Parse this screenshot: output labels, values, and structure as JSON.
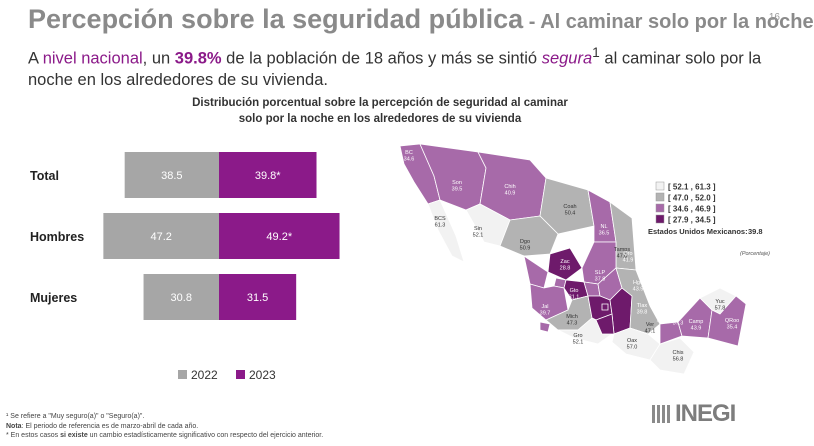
{
  "header": {
    "title_main": "Percepción sobre la seguridad pública",
    "title_sub": " - Al caminar solo por la noche",
    "page_number": "16"
  },
  "lead": {
    "p1": "A ",
    "p2": "nivel nacional",
    "p3": ", un ",
    "p4": "39.8%",
    "p5": " de la población de 18 años y más se sintió ",
    "p6": "segura",
    "p6sup": "1",
    "p7": " al caminar solo por la noche en los alrededores de su vivienda."
  },
  "chart_data": [
    {
      "type": "bar",
      "orientation": "horizontal-diverging",
      "title": "Distribución porcentual sobre la percepción de seguridad al caminar solo por la noche en los alrededores de su vivienda",
      "categories": [
        "Total",
        "Hombres",
        "Mujeres"
      ],
      "series": [
        {
          "name": "2022",
          "color": "#a6a6a6",
          "values": [
            38.5,
            47.2,
            30.8
          ],
          "labels": [
            "38.5",
            "47.2",
            "30.8"
          ]
        },
        {
          "name": "2023",
          "color": "#8b1a89",
          "values": [
            39.8,
            49.2,
            31.5
          ],
          "labels": [
            "39.8*",
            "49.2*",
            "31.5"
          ]
        }
      ],
      "xlabel": "",
      "ylabel": ""
    },
    {
      "type": "choropleth",
      "legend": [
        {
          "range": "[ 52.1 , 61.3 ]",
          "color": "#f2f2f2"
        },
        {
          "range": "[ 47.0 , 52.0 ]",
          "color": "#b3b3b3"
        },
        {
          "range": "[ 34.6 , 46.9 ]",
          "color": "#a76aa9"
        },
        {
          "range": "[ 27.9 , 34.5 ]",
          "color": "#6e1a6b"
        }
      ],
      "national_label": "Estados Unidos Mexicanos:",
      "national_value": "39.8",
      "unit_note": "(Porcentaje)",
      "states": [
        {
          "name": "BC",
          "value": "34.6"
        },
        {
          "name": "Son",
          "value": "39.5"
        },
        {
          "name": "Chih",
          "value": "40.9"
        },
        {
          "name": "Coah",
          "value": "50.4"
        },
        {
          "name": "NL",
          "value": "36.5"
        },
        {
          "name": "Tamps",
          "value": "47.0"
        },
        {
          "name": "BCS",
          "value": "61.3"
        },
        {
          "name": "Sin",
          "value": "52.1"
        },
        {
          "name": "Dgo",
          "value": "50.9"
        },
        {
          "name": "Zac",
          "value": "28.8"
        },
        {
          "name": "SLP",
          "value": "37.8"
        },
        {
          "name": "Ags",
          "value": "36.3"
        },
        {
          "name": "Nay",
          "value": "39.6"
        },
        {
          "name": "Jal",
          "value": "39.7"
        },
        {
          "name": "Gto",
          "value": "31.1"
        },
        {
          "name": "Qro",
          "value": "41.9"
        },
        {
          "name": "Hgo",
          "value": "43.9"
        },
        {
          "name": "Tlax",
          "value": "39.8"
        },
        {
          "name": "Mich",
          "value": "47.3"
        },
        {
          "name": "Col",
          "value": "38.6"
        },
        {
          "name": "Edomex",
          "value": "27.9"
        },
        {
          "name": "CDMX",
          "value": "33.8"
        },
        {
          "name": "Gro",
          "value": "52.1"
        },
        {
          "name": "Pue",
          "value": "34.3"
        },
        {
          "name": "Mor",
          "value": "29.4"
        },
        {
          "name": "Ver",
          "value": "47.1"
        },
        {
          "name": "Oax",
          "value": "57.0"
        },
        {
          "name": "Chis",
          "value": "56.8"
        },
        {
          "name": "Tab",
          "value": "37.3"
        },
        {
          "name": "Camp",
          "value": "43.9"
        },
        {
          "name": "Yuc",
          "value": "57.8"
        },
        {
          "name": "QRoo",
          "value": "35.4"
        }
      ]
    }
  ],
  "footnotes": {
    "n1": "¹ Se refiere a \"Muy seguro(a)\" o \"Seguro(a)\".",
    "n2_label": "Nota",
    "n2_text": ": El periodo de referencia es de marzo-abril de cada año.",
    "n3_a": "* En estos casos ",
    "n3_b": "si existe",
    "n3_c": " un cambio estadísticamente significativo con respecto del ejercicio anterior."
  },
  "brand": {
    "name": "INEGI"
  }
}
